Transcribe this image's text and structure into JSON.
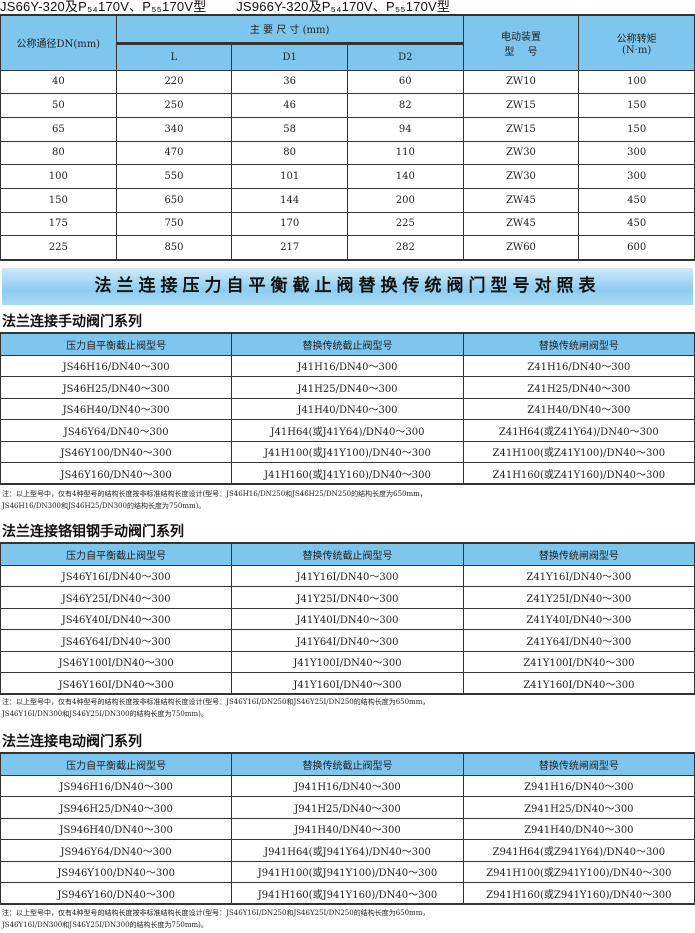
{
  "top_title": [
    "JS66Y-320及P₅₄170V、P₅₅170V型",
    "JS966Y-320及P₅₄170V、P₅₅170V型"
  ],
  "dim_table": {
    "h_dn": "公称通径DN(mm)",
    "h_main": "主 要 尺 寸 (mm)",
    "h_L": "L",
    "h_D1": "D1",
    "h_D2": "D2",
    "h_drive": "电动装置\n型　 号",
    "h_torque": "公称转矩\n(N·m)",
    "rows": [
      [
        "40",
        "220",
        "36",
        "60",
        "ZW10",
        "100"
      ],
      [
        "50",
        "250",
        "46",
        "82",
        "ZW15",
        "150"
      ],
      [
        "65",
        "340",
        "58",
        "94",
        "ZW15",
        "150"
      ],
      [
        "80",
        "470",
        "80",
        "110",
        "ZW30",
        "300"
      ],
      [
        "100",
        "550",
        "101",
        "140",
        "ZW30",
        "300"
      ],
      [
        "150",
        "650",
        "144",
        "200",
        "ZW45",
        "450"
      ],
      [
        "175",
        "750",
        "170",
        "225",
        "ZW45",
        "450"
      ],
      [
        "225",
        "850",
        "217",
        "282",
        "ZW60",
        "600"
      ]
    ]
  },
  "banner": "法兰连接压力自平衡截止阀替换传统阀门型号对照表",
  "sections": [
    {
      "title": "法兰连接手动阀门系列",
      "headers": [
        "压力自平衡截止阀型号",
        "替换传统截止阀型号",
        "替换传统闸阀型号"
      ],
      "rows": [
        [
          "JS46H16/DN40～300",
          "J41H16/DN40～300",
          "Z41H16/DN40～300"
        ],
        [
          "JS46H25/DN40～300",
          "J41H25/DN40～300",
          "Z41H25/DN40～300"
        ],
        [
          "JS46H40/DN40～300",
          "J41H40/DN40～300",
          "Z41H40/DN40～300"
        ],
        [
          "JS46Y64/DN40～300",
          "J41H64(或J41Y64)/DN40～300",
          "Z41H64(或Z41Y64)/DN40～300"
        ],
        [
          "JS46Y100/DN40～300",
          "J41H100(或J41Y100)/DN40～300",
          "Z41H100(或Z41Y100)/DN40～300"
        ],
        [
          "JS46Y160/DN40～300",
          "J41H160(或J41Y160)/DN40～300",
          "Z41H160(或Z41Y160)/DN40～300"
        ]
      ],
      "note": "注：以上型号中，仅有4种型号的结构长度按非标准结构长度设计(型号：JS46H16/DN250和JS46H25/DN250的结构长度为650mm，\nJS46H16/DN300和JS46H25/DN300的结构长度为750mm)。"
    },
    {
      "title": "法兰连接铬钼钢手动阀门系列",
      "headers": [
        "压力自平衡截止阀型号",
        "替换传统截止阀型号",
        "替换传统闸阀型号"
      ],
      "rows": [
        [
          "JS46Y16I/DN40～300",
          "J41Y16I/DN40～300",
          "Z41Y16I/DN40～300"
        ],
        [
          "JS46Y25I/DN40～300",
          "J41Y25I/DN40～300",
          "Z41Y25I/DN40～300"
        ],
        [
          "JS46Y40I/DN40～300",
          "J41Y40I/DN40～300",
          "Z41Y40I/DN40～300"
        ],
        [
          "JS46Y64I/DN40～300",
          "J41Y64I/DN40～300",
          "Z41Y64I/DN40～300"
        ],
        [
          "JS46Y100I/DN40～300",
          "J41Y100I/DN40～300",
          "Z41Y100I/DN40～300"
        ],
        [
          "JS46Y160I/DN40～300",
          "J41Y160I/DN40～300",
          "Z41Y160I/DN40～300"
        ]
      ],
      "note": "注：以上型号中，仅有4种型号的结构长度按非标准结构长度设计(型号：JS46Y16I/DN250和JS46Y25I/DN250的结构长度为650mm，\nJS46Y16I/DN300和JS46Y25I/DN300的结构长度为750mm)。"
    },
    {
      "title": "法兰连接电动阀门系列",
      "headers": [
        "压力自平衡截止阀型号",
        "替换传统截止阀型号",
        "替换传统闸阀型号"
      ],
      "rows": [
        [
          "JS946H16/DN40～300",
          "J941H16/DN40～300",
          "Z941H16/DN40～300"
        ],
        [
          "JS946H25/DN40～300",
          "J941H25/DN40～300",
          "Z941H25/DN40～300"
        ],
        [
          "JS946H40/DN40～300",
          "J941H40/DN40～300",
          "Z941H40/DN40～300"
        ],
        [
          "JS946Y64/DN40～300",
          "J941H64(或J941Y64)/DN40～300",
          "Z941H64(或Z941Y64)/DN40～300"
        ],
        [
          "JS946Y100/DN40～300",
          "J941H100(或J941Y100)/DN40～300",
          "Z941H100(或Z941Y100)/DN40～300"
        ],
        [
          "JS946Y160/DN40～300",
          "J941H160(或J941Y160)/DN40～300",
          "Z941H160(或Z941Y160)/DN40～300"
        ]
      ],
      "note": "注：以上型号中，仅有4种型号的结构长度按非标准结构长度设计(型号：JS46Y16I/DN250和JS46Y25I/DN250的结构长度为650mm，\nJS46Y16I/DN300和JS46Y25I/DN300的结构长度为750mm)。"
    }
  ],
  "colors": {
    "header_bg": "#7fc6ee",
    "banner_bg": "#8dcdf0"
  }
}
